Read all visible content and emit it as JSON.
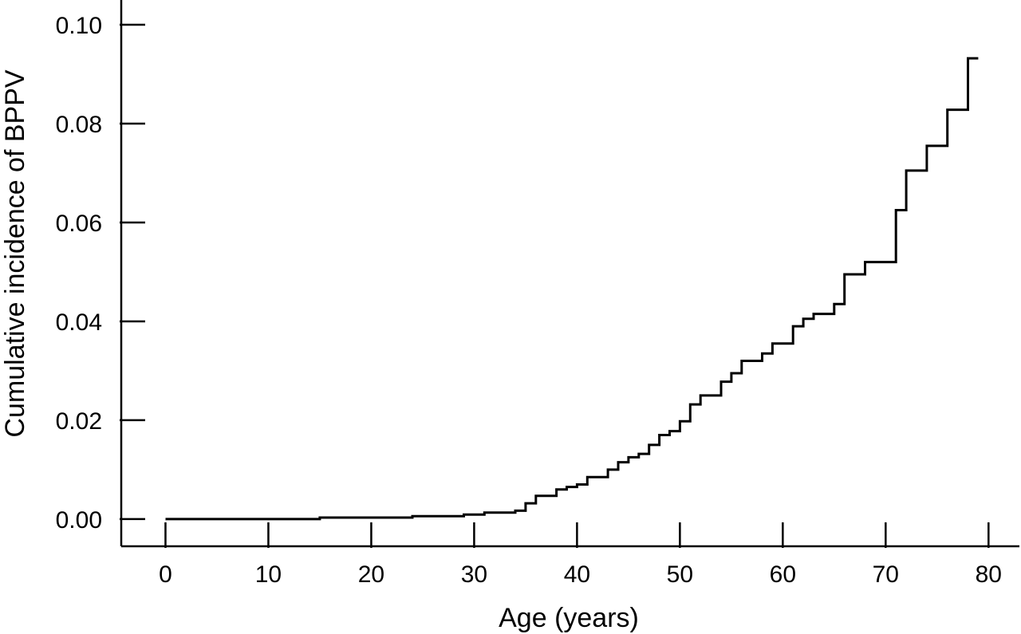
{
  "chart_data": {
    "type": "line",
    "step": true,
    "xlabel": "Age (years)",
    "ylabel": "Cumulative incidence of BPPV",
    "xlim": [
      -4.3,
      83
    ],
    "ylim": [
      -0.0055,
      0.105
    ],
    "xticks": [
      0,
      10,
      20,
      30,
      40,
      50,
      60,
      70,
      80
    ],
    "xtick_labels": [
      "0",
      "10",
      "20",
      "30",
      "40",
      "50",
      "60",
      "70",
      "80"
    ],
    "yticks": [
      0.0,
      0.02,
      0.04,
      0.06,
      0.08,
      0.1
    ],
    "ytick_labels": [
      "0.00",
      "0.02",
      "0.04",
      "0.06",
      "0.08",
      "0.10"
    ],
    "grid": false,
    "legend": false,
    "series": [
      {
        "x": [
          0,
          15,
          24,
          29,
          31,
          34,
          35,
          36,
          38,
          39,
          40,
          41,
          43,
          44,
          45,
          46,
          47,
          48,
          49,
          50,
          51,
          52,
          54,
          55,
          56,
          58,
          59,
          61,
          62,
          63,
          65,
          66,
          68,
          71,
          72,
          74,
          76,
          78,
          79
        ],
        "y": [
          0.0,
          0.0003,
          0.0006,
          0.0009,
          0.0013,
          0.0017,
          0.0032,
          0.0047,
          0.006,
          0.0065,
          0.007,
          0.0085,
          0.01,
          0.0115,
          0.0125,
          0.0132,
          0.015,
          0.017,
          0.0178,
          0.0198,
          0.0232,
          0.025,
          0.0278,
          0.0295,
          0.032,
          0.0335,
          0.0355,
          0.039,
          0.0405,
          0.0415,
          0.0435,
          0.0495,
          0.052,
          0.0625,
          0.0705,
          0.0755,
          0.0828,
          0.0932,
          0.0932
        ]
      }
    ]
  }
}
